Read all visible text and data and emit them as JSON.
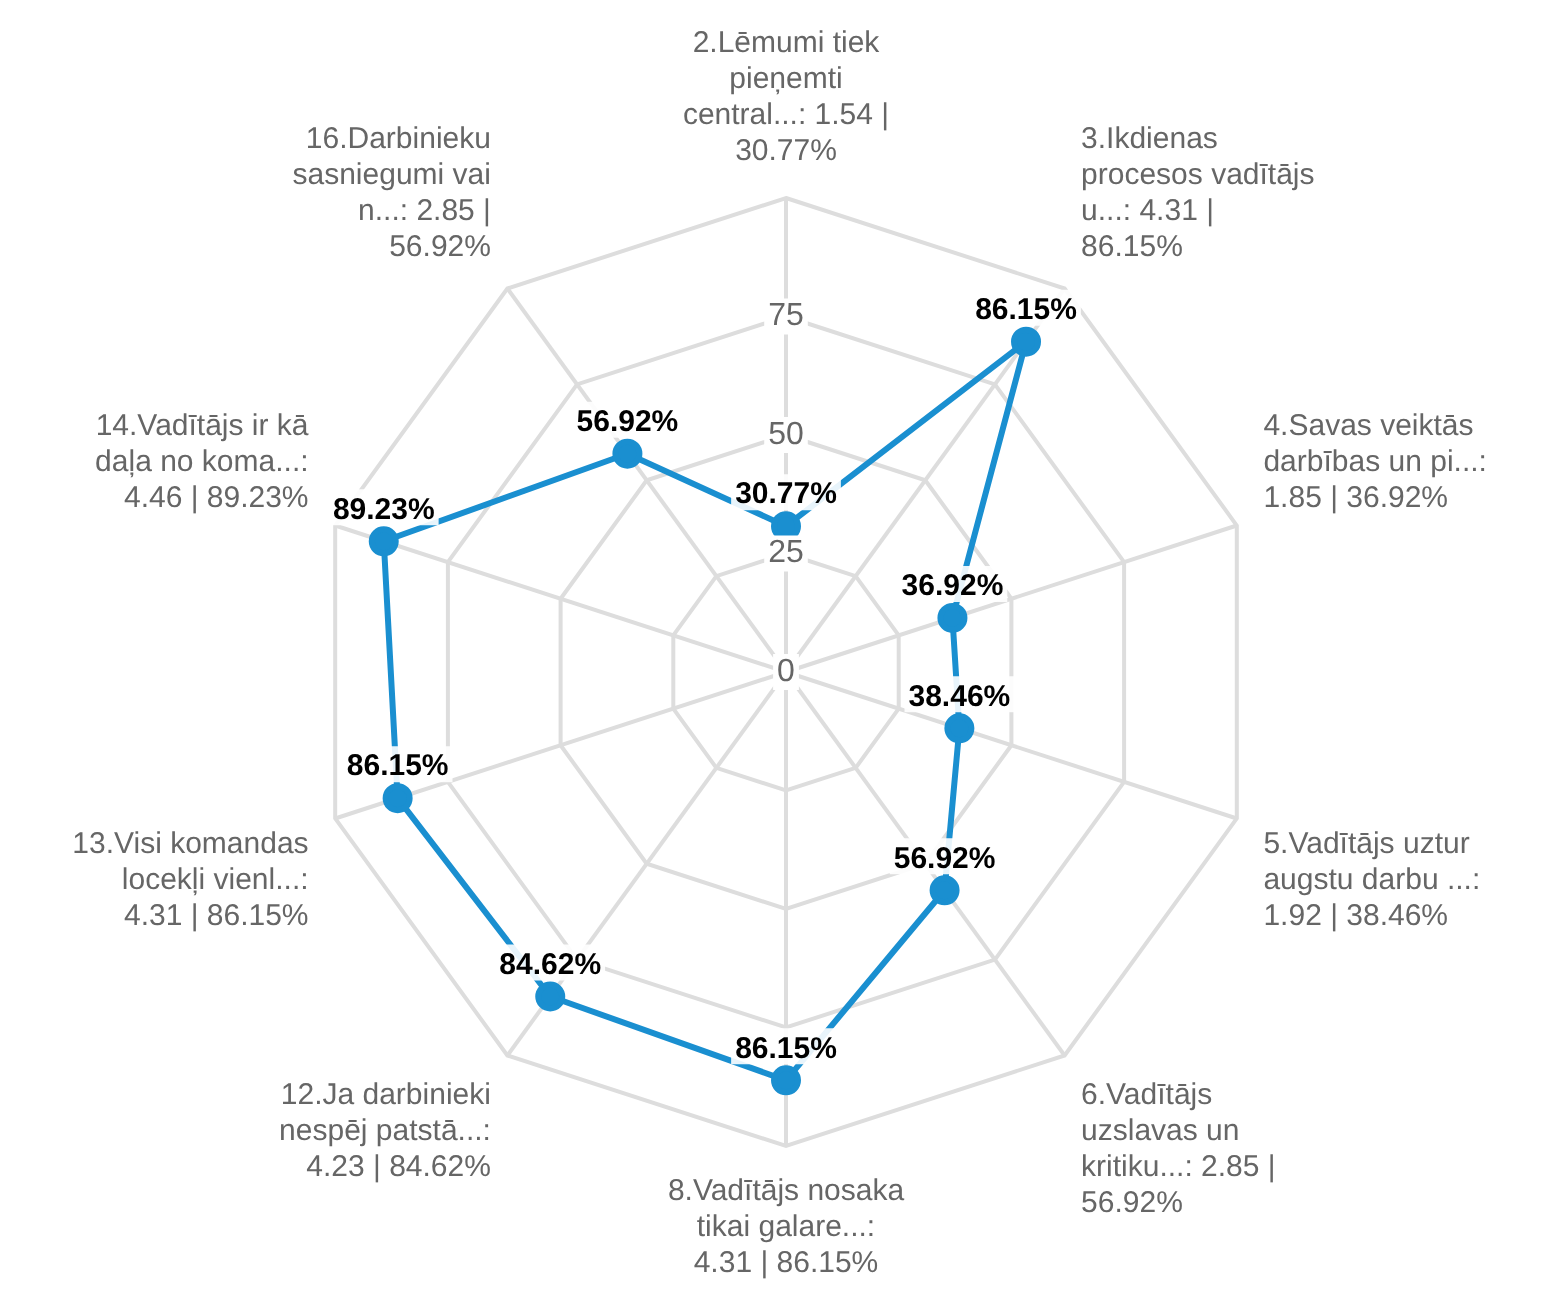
{
  "chart_data": {
    "type": "radar",
    "categories": [
      "2.Lēmumi tiek pieņemti central...: 1.54 | 30.77%",
      "3.Ikdienas procesos vadītājs u...: 4.31 | 86.15%",
      "4.Savas veiktās darbības un pi...: 1.85 | 36.92%",
      "5.Vadītājs uztur augstu darbu ...: 1.92 | 38.46%",
      "6.Vadītājs uzslavas un kritiku...: 2.85 | 56.92%",
      "8.Vadītājs nosaka tikai galare...: 4.31 | 86.15%",
      "12.Ja darbinieki nespēj patstā...: 4.23 | 84.62%",
      "13.Visi komandas locekļi vienl...: 4.31 | 86.15%",
      "14.Vadītājs ir kā daļa no koma...: 4.46 | 89.23%",
      "16.Darbinieku sasniegumi vai n...: 2.85 | 56.92%"
    ],
    "series": [
      {
        "color": "#1a8fd0",
        "values": [
          30.77,
          86.15,
          36.92,
          38.46,
          56.92,
          86.15,
          84.62,
          86.15,
          89.23,
          56.92
        ],
        "value_labels": [
          "30.77%",
          "86.15%",
          "36.92%",
          "38.46%",
          "56.92%",
          "86.15%",
          "84.62%",
          "86.15%",
          "89.23%",
          "56.92%"
        ]
      }
    ],
    "ylim": [
      0,
      100
    ],
    "yticks": [
      0,
      25,
      50,
      75
    ],
    "grid": true,
    "legend": false,
    "marker": "circle",
    "line_style": "solid"
  }
}
